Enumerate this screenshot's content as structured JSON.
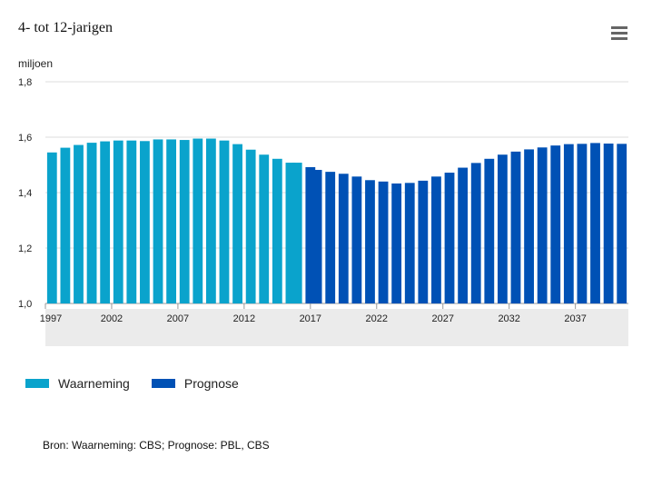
{
  "header": {
    "title": "4- tot 12-jarigen",
    "menu_icon": "hamburger-menu-icon"
  },
  "chart_data": {
    "type": "bar",
    "title": "4- tot 12-jarigen",
    "ylabel": "miljoen",
    "xlabel": "",
    "ylim": [
      1.0,
      1.8
    ],
    "yticks": [
      "1,0",
      "1,2",
      "1,4",
      "1,6",
      "1,8"
    ],
    "ytick_values": [
      1.0,
      1.2,
      1.4,
      1.6,
      1.8
    ],
    "xtick_labels": [
      "1997",
      "2002",
      "2007",
      "2012",
      "2017",
      "2022",
      "2027",
      "2032",
      "2037"
    ],
    "grid": true,
    "legend_position": "bottom-left",
    "series": [
      {
        "name": "Waarneming",
        "color": "#0aa3cc",
        "x": [
          1997,
          1998,
          1999,
          2000,
          2001,
          2002,
          2003,
          2004,
          2005,
          2006,
          2007,
          2008,
          2009,
          2010,
          2011,
          2012,
          2013,
          2014,
          2015,
          2016
        ],
        "values": [
          1.545,
          1.562,
          1.572,
          1.58,
          1.585,
          1.588,
          1.588,
          1.586,
          1.592,
          1.592,
          1.59,
          1.595,
          1.595,
          1.588,
          1.575,
          1.555,
          1.537,
          1.522,
          1.508,
          1.508
        ]
      },
      {
        "name": "Prognose",
        "color": "#0051b5",
        "x": [
          2016,
          2017,
          2018,
          2019,
          2020,
          2021,
          2022,
          2023,
          2024,
          2025,
          2026,
          2027,
          2028,
          2029,
          2030,
          2031,
          2032,
          2033,
          2034,
          2035,
          2036,
          2037,
          2038,
          2039,
          2040
        ],
        "values": [
          1.492,
          1.482,
          1.475,
          1.468,
          1.458,
          1.445,
          1.44,
          1.433,
          1.435,
          1.443,
          1.458,
          1.472,
          1.49,
          1.507,
          1.522,
          1.537,
          1.548,
          1.556,
          1.563,
          1.57,
          1.575,
          1.576,
          1.579,
          1.577,
          1.576
        ]
      }
    ]
  },
  "legend": {
    "items": [
      {
        "label": "Waarneming",
        "color": "#0aa3cc"
      },
      {
        "label": "Prognose",
        "color": "#0051b5"
      }
    ]
  },
  "source": "Bron: Waarneming: CBS; Prognose: PBL, CBS"
}
